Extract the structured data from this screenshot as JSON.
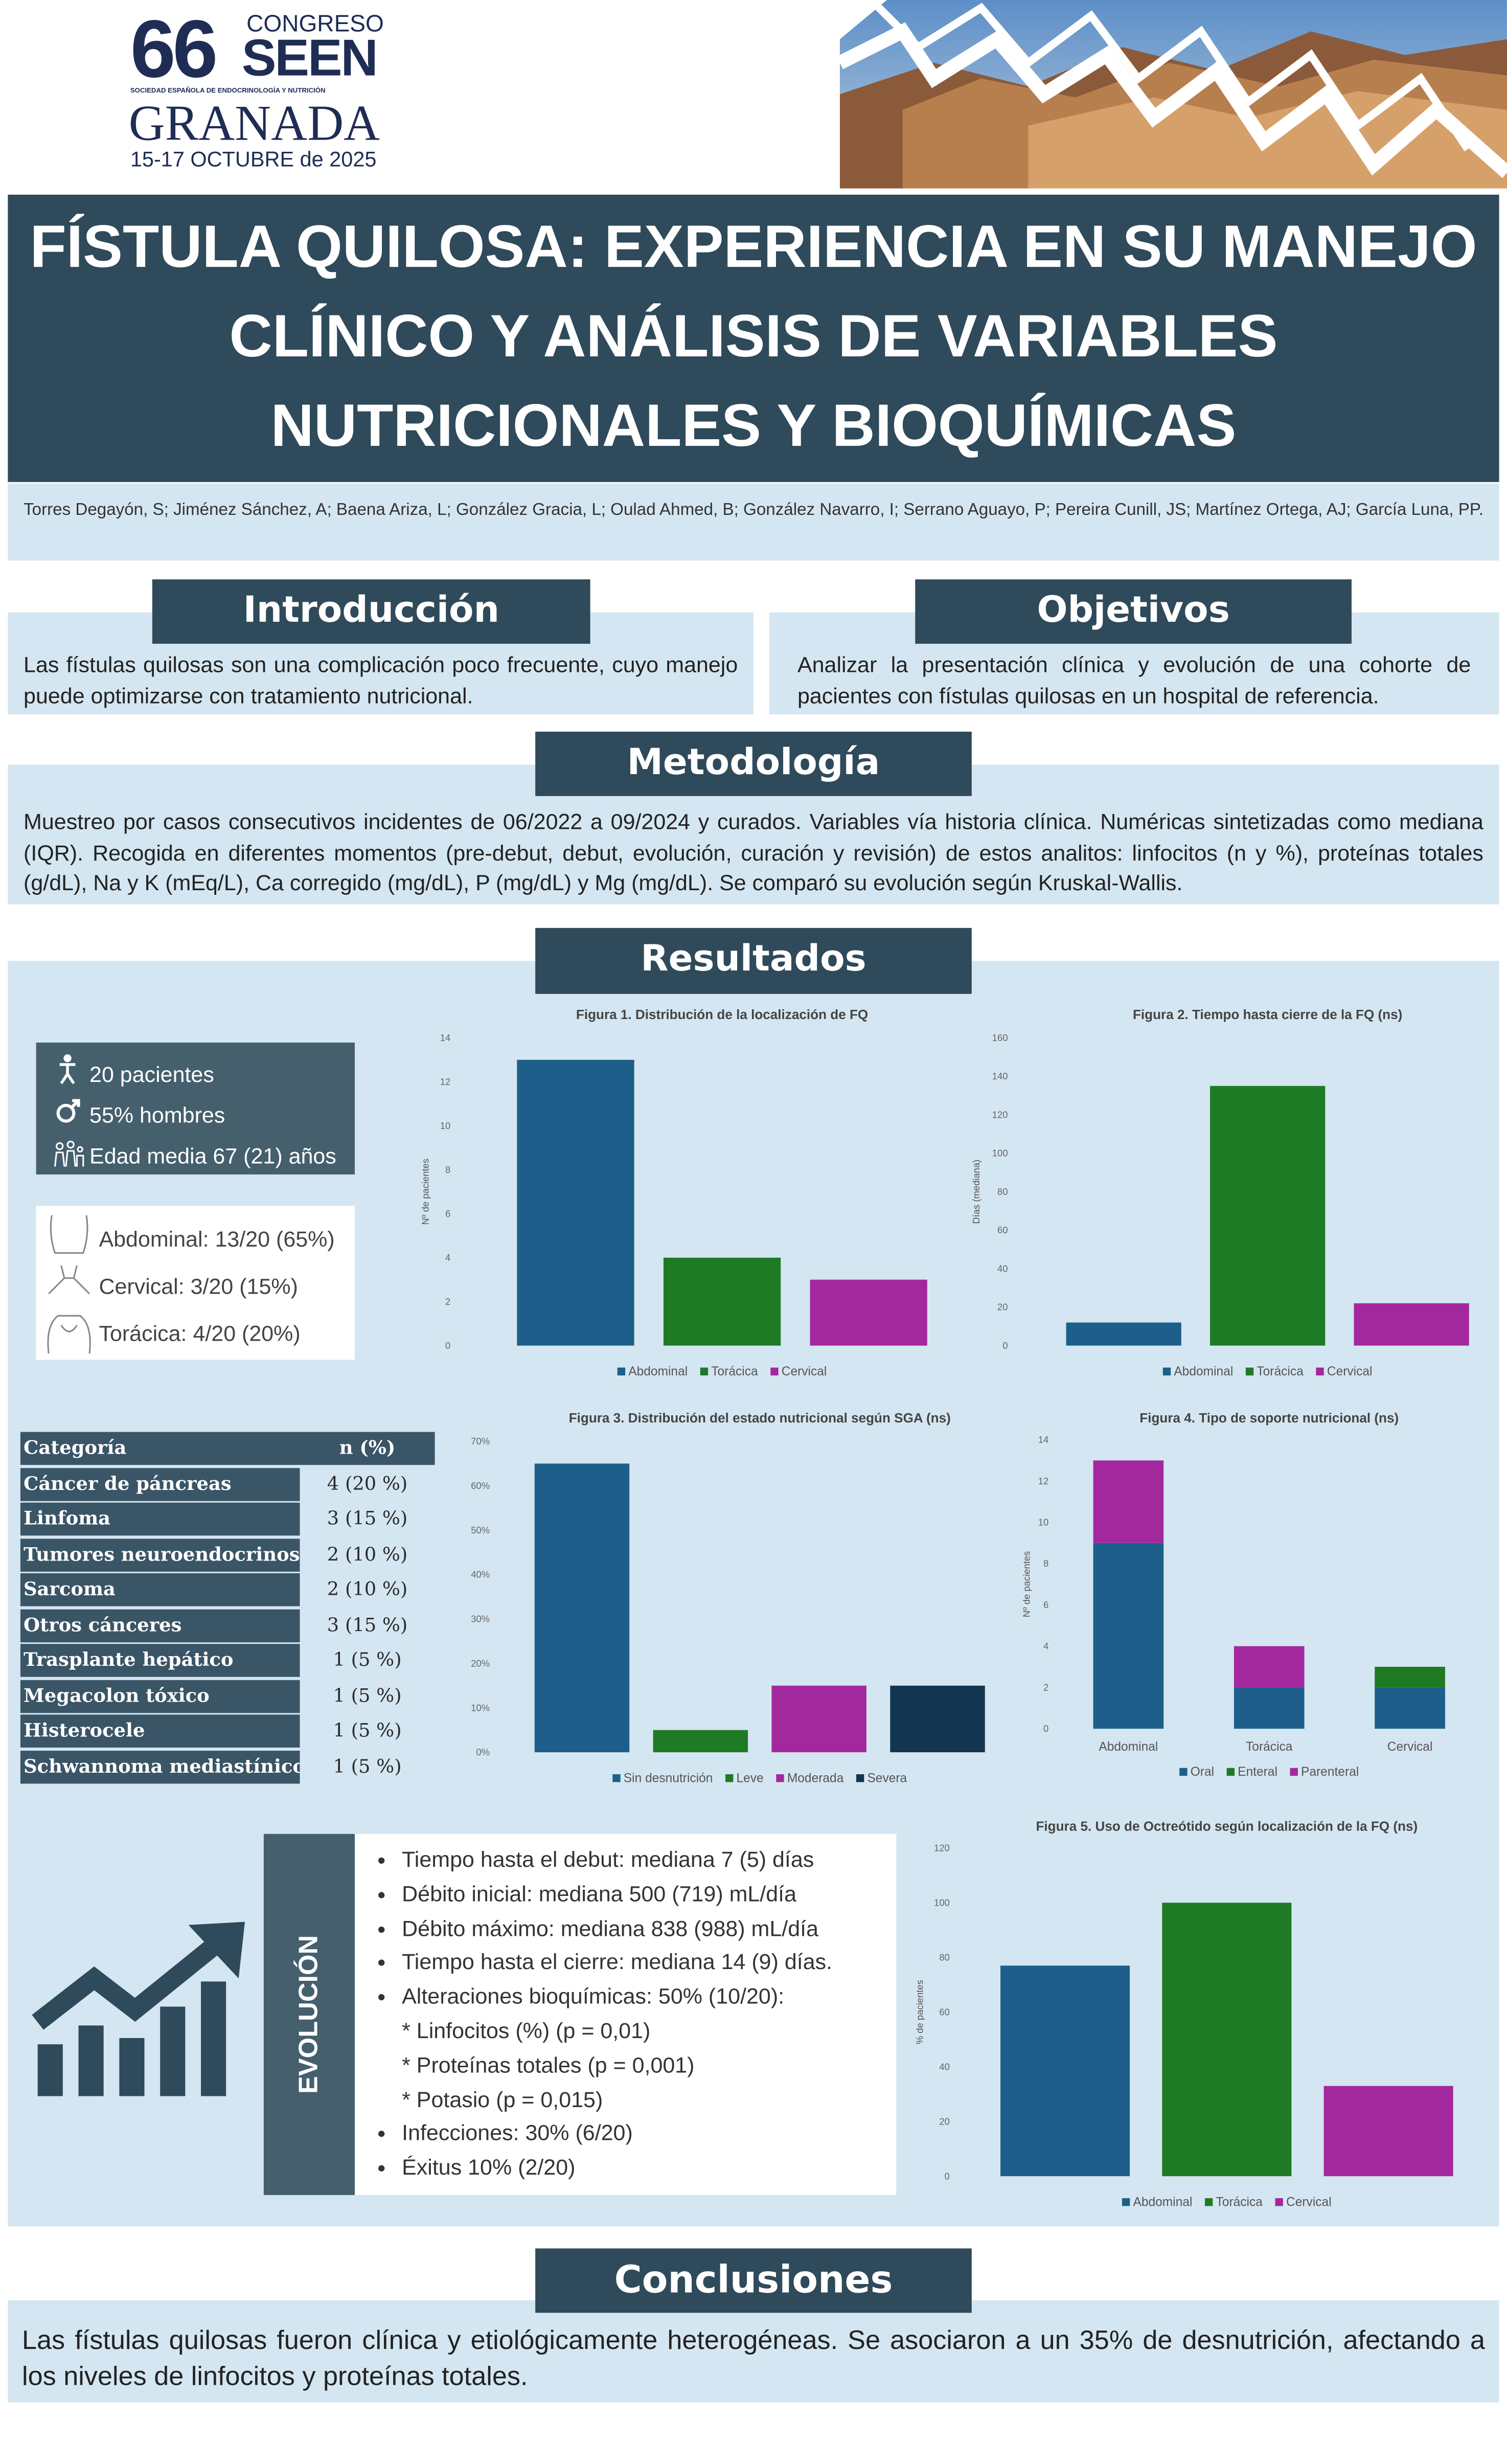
{
  "header": {
    "number": "66",
    "congress": "CONGRESO",
    "acronym": "SEEN",
    "society": "SOCIEDAD ESPAÑOLA DE ENDOCRINOLOGÍA Y NUTRICIÓN",
    "city": "GRANADA",
    "dates": "15-17 OCTUBRE de 2025"
  },
  "title": "FÍSTULA QUILOSA: EXPERIENCIA EN SU MANEJO CLÍNICO Y ANÁLISIS DE VARIABLES NUTRICIONALES Y BIOQUÍMICAS",
  "authors": "Torres Degayón, S; Jiménez Sánchez, A; Baena Ariza, L; González Gracia, L; Oulad Ahmed, B; González Navarro, I; Serrano Aguayo, P; Pereira Cunill, JS; Martínez Ortega, AJ; García Luna, PP.",
  "introduction": {
    "heading": "Introducción",
    "text": "Las fístulas quilosas son una complicación poco frecuente, cuyo manejo puede optimizarse con tratamiento nutricional."
  },
  "objectives": {
    "heading": "Objetivos",
    "text": "Analizar la presentación clínica y evolución de una cohorte de pacientes con fístulas quilosas en un hospital de referencia."
  },
  "methods": {
    "heading": "Metodología",
    "text": "Muestreo por casos consecutivos incidentes de 06/2022 a 09/2024 y curados. Variables vía historia clínica. Numéricas sintetizadas como mediana (IQR). Recogida en diferentes momentos (pre-debut, debut, evolución, curación y revisión) de estos analitos: linfocitos (n y %), proteínas totales (g/dL), Na y K (mEq/L), Ca corregido (mg/dL), P (mg/dL) y Mg (mg/dL). Se comparó su evolución según Kruskal-Wallis."
  },
  "results": {
    "heading": "Resultados",
    "demographics": [
      "20 pacientes",
      "55% hombres",
      "Edad media 67 (21) años"
    ],
    "localization": [
      "Abdominal: 13/20 (65%)",
      "Cervical: 3/20 (15%)",
      "Torácica: 4/20 (20%)"
    ]
  },
  "table": {
    "header": [
      "Categoría",
      "n (%)"
    ],
    "rows": [
      [
        "Cáncer de páncreas",
        "4 (20 %)"
      ],
      [
        "Linfoma",
        "3 (15 %)"
      ],
      [
        "Tumores neuroendocrinos",
        "2 (10 %)"
      ],
      [
        "Sarcoma",
        "2 (10 %)"
      ],
      [
        "Otros cánceres",
        "3 (15 %)"
      ],
      [
        "Trasplante hepático",
        "1 (5 %)"
      ],
      [
        "Megacolon tóxico",
        "1 (5 %)"
      ],
      [
        "Histerocele",
        "1 (5 %)"
      ],
      [
        "Schwannoma mediastínico",
        "1 (5 %)"
      ]
    ]
  },
  "evolution": {
    "label": "EVOLUCIÓN",
    "items": [
      "Tiempo hasta el debut: mediana 7 (5) días",
      "Débito inicial: mediana 500 (719) mL/día",
      "Débito máximo: mediana 838 (988) mL/día",
      "Tiempo hasta el cierre: mediana 14 (9) días.",
      {
        "text": "Alteraciones bioquímicas: 50% (10/20):",
        "sub": [
          "* Linfocitos (%) (p = 0,01)",
          "* Proteínas totales (p = 0,001)",
          "* Potasio  (p = 0,015)"
        ]
      },
      "Infecciones: 30% (6/20)",
      "Éxitus 10% (2/20)"
    ]
  },
  "conclusions": {
    "heading": "Conclusiones",
    "text": "Las fístulas quilosas fueron clínica y etiológicamente heterogéneas. Se asociaron a un 35% de desnutrición, afectando a los niveles de linfocitos y proteínas totales."
  },
  "chart_data": [
    {
      "type": "bar",
      "title": "Figura 1. Distribución de la localización de FQ",
      "ylabel": "Nº de pacientes",
      "categories": [
        "Abdominal",
        "Torácica",
        "Cervical"
      ],
      "values": [
        13,
        4,
        3
      ],
      "colors": [
        "#1d5f8a",
        "#1f7a26",
        "#a3289e"
      ],
      "ylim": [
        0,
        14
      ],
      "yticks": [
        0,
        2,
        4,
        6,
        8,
        10,
        12,
        14
      ]
    },
    {
      "type": "bar",
      "title": "Figura 2. Tiempo hasta cierre de la FQ (ns)",
      "ylabel": "Días (mediana)",
      "categories": [
        "Abdominal",
        "Torácica",
        "Cervical"
      ],
      "values": [
        12,
        135,
        22
      ],
      "colors": [
        "#1d5f8a",
        "#1f7a26",
        "#a3289e"
      ],
      "ylim": [
        0,
        160
      ],
      "yticks": [
        0,
        20,
        40,
        60,
        80,
        100,
        120,
        140,
        160
      ]
    },
    {
      "type": "bar",
      "title": "Figura 3. Distribución del estado nutricional según SGA (ns)",
      "categories": [
        "Sin desnutrición",
        "Leve",
        "Moderada",
        "Severa"
      ],
      "values": [
        65,
        5,
        15,
        15
      ],
      "colors": [
        "#1d5f8a",
        "#1f7a26",
        "#a3289e",
        "#14354f"
      ],
      "ylim": [
        0,
        70
      ],
      "yticks": [
        {
          "value": 0,
          "label": "0%"
        },
        {
          "value": 10,
          "label": "10%"
        },
        {
          "value": 20,
          "label": "20%"
        },
        {
          "value": 30,
          "label": "30%"
        },
        {
          "value": 40,
          "label": "40%"
        },
        {
          "value": 50,
          "label": "50%"
        },
        {
          "value": 60,
          "label": "60%"
        },
        {
          "value": 70,
          "label": "70%"
        }
      ]
    },
    {
      "type": "stacked_bar",
      "title": "Figura 4. Tipo de soporte nutricional (ns)",
      "ylabel": "Nº de pacientes",
      "categories": [
        "Abdominal",
        "Torácica",
        "Cervical"
      ],
      "series": [
        {
          "name": "Oral",
          "color": "#1d5f8a",
          "values": [
            9,
            2,
            2
          ]
        },
        {
          "name": "Enteral",
          "color": "#1f7a26",
          "values": [
            0,
            0,
            1
          ]
        },
        {
          "name": "Parenteral",
          "color": "#a3289e",
          "values": [
            4,
            2,
            0
          ]
        }
      ],
      "ylim": [
        0,
        14
      ],
      "yticks": [
        0,
        2,
        4,
        6,
        8,
        10,
        12,
        14
      ]
    },
    {
      "type": "bar",
      "title": "Figura 5. Uso de Octreótido según localización de la FQ (ns)",
      "ylabel": "% de pacientes",
      "categories": [
        "Abdominal",
        "Torácica",
        "Cervical"
      ],
      "values": [
        77,
        100,
        33
      ],
      "colors": [
        "#1d5f8a",
        "#1f7a26",
        "#a3289e"
      ],
      "ylim": [
        0,
        120
      ],
      "yticks": [
        0,
        20,
        40,
        60,
        80,
        100,
        120
      ]
    }
  ]
}
